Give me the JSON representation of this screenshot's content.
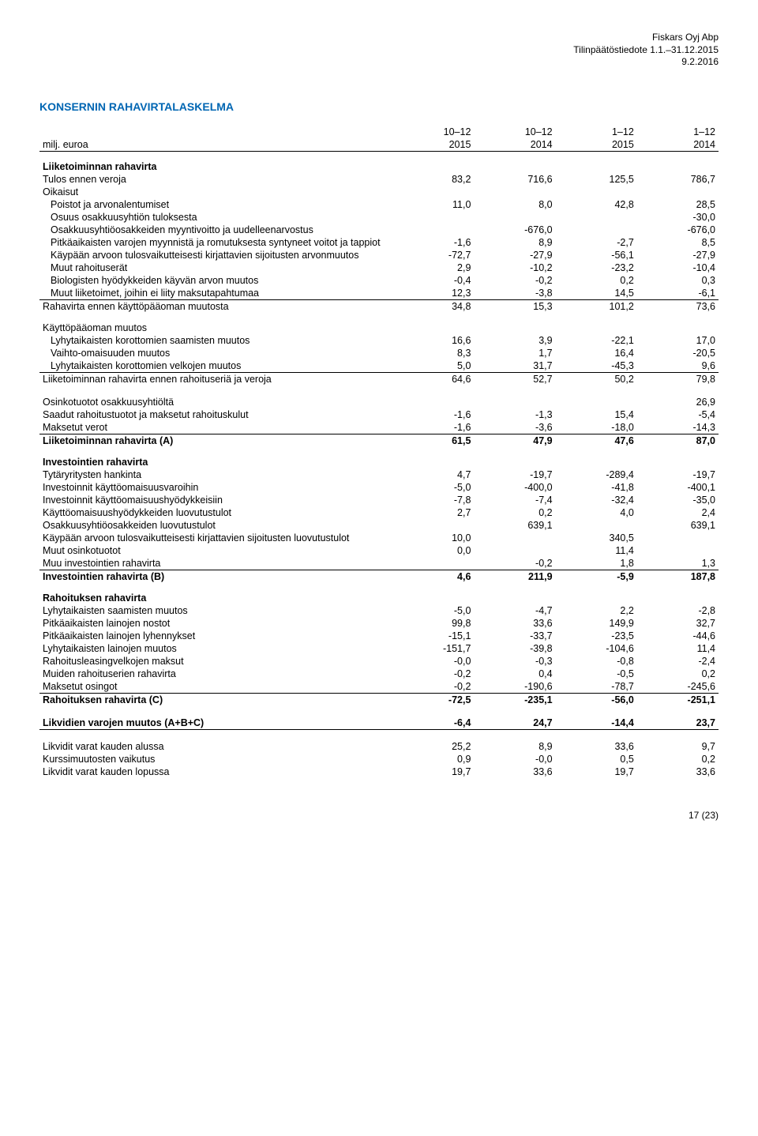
{
  "header": {
    "company": "Fiskars Oyj Abp",
    "doc": "Tilinpäätöstiedote 1.1.–31.12.2015",
    "date": "9.2.2016"
  },
  "title": "KONSERNIN RAHAVIRTALASKELMA",
  "periods": {
    "p1": "10–12",
    "p2": "10–12",
    "p3": "1–12",
    "p4": "1–12"
  },
  "unit_row": {
    "label": "milj. euroa",
    "c1": "2015",
    "c2": "2014",
    "c3": "2015",
    "c4": "2014"
  },
  "sec1_title": "Liiketoiminnan rahavirta",
  "rows1": [
    {
      "label": "Tulos ennen veroja",
      "c1": "83,2",
      "c2": "716,6",
      "c3": "125,5",
      "c4": "786,7"
    },
    {
      "label": "Oikaisut"
    },
    {
      "label": "Poistot ja arvonalentumiset",
      "indent": true,
      "c1": "11,0",
      "c2": "8,0",
      "c3": "42,8",
      "c4": "28,5"
    },
    {
      "label": "Osuus osakkuusyhtiön tuloksesta",
      "indent": true,
      "c4": "-30,0"
    },
    {
      "label": "Osakkuusyhtiöosakkeiden myyntivoitto ja uudelleenarvostus",
      "indent": true,
      "c2": "-676,0",
      "c4": "-676,0"
    },
    {
      "label": "Pitkäaikaisten varojen myynnistä ja romutuksesta syntyneet voitot ja tappiot",
      "indent": true,
      "c1": "-1,6",
      "c2": "8,9",
      "c3": "-2,7",
      "c4": "8,5"
    },
    {
      "label": "Käypään arvoon tulosvaikutteisesti kirjattavien sijoitusten arvonmuutos",
      "indent": true,
      "c1": "-72,7",
      "c2": "-27,9",
      "c3": "-56,1",
      "c4": "-27,9"
    },
    {
      "label": "Muut rahoituserät",
      "indent": true,
      "c1": "2,9",
      "c2": "-10,2",
      "c3": "-23,2",
      "c4": "-10,4"
    },
    {
      "label": "Biologisten hyödykkeiden käyvän arvon muutos",
      "indent": true,
      "c1": "-0,4",
      "c2": "-0,2",
      "c3": "0,2",
      "c4": "0,3"
    },
    {
      "label": "Muut liiketoimet, joihin ei liity maksutapahtumaa",
      "indent": true,
      "underline": true,
      "c1": "12,3",
      "c2": "-3,8",
      "c3": "14,5",
      "c4": "-6,1"
    },
    {
      "label": "Rahavirta ennen käyttöpääoman muutosta",
      "c1": "34,8",
      "c2": "15,3",
      "c3": "101,2",
      "c4": "73,6"
    }
  ],
  "sec2_title": "Käyttöpääoman muutos",
  "rows2": [
    {
      "label": "Lyhytaikaisten korottomien saamisten muutos",
      "indent": true,
      "c1": "16,6",
      "c2": "3,9",
      "c3": "-22,1",
      "c4": "17,0"
    },
    {
      "label": "Vaihto-omaisuuden muutos",
      "indent": true,
      "c1": "8,3",
      "c2": "1,7",
      "c3": "16,4",
      "c4": "-20,5"
    },
    {
      "label": "Lyhytaikaisten korottomien velkojen muutos",
      "indent": true,
      "underline": true,
      "c1": "5,0",
      "c2": "31,7",
      "c3": "-45,3",
      "c4": "9,6"
    },
    {
      "label": "Liiketoiminnan rahavirta ennen rahoituseriä ja veroja",
      "c1": "64,6",
      "c2": "52,7",
      "c3": "50,2",
      "c4": "79,8"
    }
  ],
  "rows3": [
    {
      "label": "Osinkotuotot osakkuusyhtiöltä",
      "c4": "26,9"
    },
    {
      "label": "Saadut rahoitustuotot ja maksetut rahoituskulut",
      "c1": "-1,6",
      "c2": "-1,3",
      "c3": "15,4",
      "c4": "-5,4"
    },
    {
      "label": "Maksetut verot",
      "underline": true,
      "c1": "-1,6",
      "c2": "-3,6",
      "c3": "-18,0",
      "c4": "-14,3"
    },
    {
      "label": "Liiketoiminnan rahavirta (A)",
      "bold": true,
      "c1": "61,5",
      "c2": "47,9",
      "c3": "47,6",
      "c4": "87,0"
    }
  ],
  "sec4_title": "Investointien rahavirta",
  "rows4": [
    {
      "label": "Tytäryritysten hankinta",
      "c1": "4,7",
      "c2": "-19,7",
      "c3": "-289,4",
      "c4": "-19,7"
    },
    {
      "label": "Investoinnit käyttöomaisuusvaroihin",
      "c1": "-5,0",
      "c2": "-400,0",
      "c3": "-41,8",
      "c4": "-400,1"
    },
    {
      "label": "Investoinnit käyttöomaisuushyödykkeisiin",
      "c1": "-7,8",
      "c2": "-7,4",
      "c3": "-32,4",
      "c4": "-35,0"
    },
    {
      "label": "Käyttöomaisuushyödykkeiden luovutustulot",
      "c1": "2,7",
      "c2": "0,2",
      "c3": "4,0",
      "c4": "2,4"
    },
    {
      "label": "Osakkuusyhtiöosakkeiden luovutustulot",
      "c2": "639,1",
      "c4": "639,1"
    },
    {
      "label": "Käypään arvoon tulosvaikutteisesti kirjattavien sijoitusten luovutustulot",
      "c1": "10,0",
      "c3": "340,5"
    },
    {
      "label": "Muut osinkotuotot",
      "c1": "0,0",
      "c3": "11,4"
    },
    {
      "label": "Muu investointien rahavirta",
      "underline": true,
      "c2": "-0,2",
      "c3": "1,8",
      "c4": "1,3"
    },
    {
      "label": "Investointien rahavirta (B)",
      "bold": true,
      "c1": "4,6",
      "c2": "211,9",
      "c3": "-5,9",
      "c4": "187,8"
    }
  ],
  "sec5_title": "Rahoituksen rahavirta",
  "rows5": [
    {
      "label": "Lyhytaikaisten saamisten muutos",
      "c1": "-5,0",
      "c2": "-4,7",
      "c3": "2,2",
      "c4": "-2,8"
    },
    {
      "label": "Pitkäaikaisten lainojen nostot",
      "c1": "99,8",
      "c2": "33,6",
      "c3": "149,9",
      "c4": "32,7"
    },
    {
      "label": "Pitkäaikaisten lainojen lyhennykset",
      "c1": "-15,1",
      "c2": "-33,7",
      "c3": "-23,5",
      "c4": "-44,6"
    },
    {
      "label": "Lyhytaikaisten lainojen muutos",
      "c1": "-151,7",
      "c2": "-39,8",
      "c3": "-104,6",
      "c4": "11,4"
    },
    {
      "label": "Rahoitusleasingvelkojen maksut",
      "c1": "-0,0",
      "c2": "-0,3",
      "c3": "-0,8",
      "c4": "-2,4"
    },
    {
      "label": "Muiden rahoituserien rahavirta",
      "c1": "-0,2",
      "c2": "0,4",
      "c3": "-0,5",
      "c4": "0,2"
    },
    {
      "label": "Maksetut osingot",
      "underline": true,
      "c1": "-0,2",
      "c2": "-190,6",
      "c3": "-78,7",
      "c4": "-245,6"
    },
    {
      "label": "Rahoituksen rahavirta (C)",
      "bold": true,
      "c1": "-72,5",
      "c2": "-235,1",
      "c3": "-56,0",
      "c4": "-251,1"
    }
  ],
  "rows6": [
    {
      "label": "Likvidien varojen muutos (A+B+C)",
      "bold": true,
      "underline": true,
      "c1": "-6,4",
      "c2": "24,7",
      "c3": "-14,4",
      "c4": "23,7"
    }
  ],
  "rows7": [
    {
      "label": "Likvidit varat kauden alussa",
      "c1": "25,2",
      "c2": "8,9",
      "c3": "33,6",
      "c4": "9,7"
    },
    {
      "label": "Kurssimuutosten vaikutus",
      "c1": "0,9",
      "c2": "-0,0",
      "c3": "0,5",
      "c4": "0,2"
    },
    {
      "label": "Likvidit varat kauden lopussa",
      "c1": "19,7",
      "c2": "33,6",
      "c3": "19,7",
      "c4": "33,6"
    }
  ],
  "pagenum": "17 (23)"
}
